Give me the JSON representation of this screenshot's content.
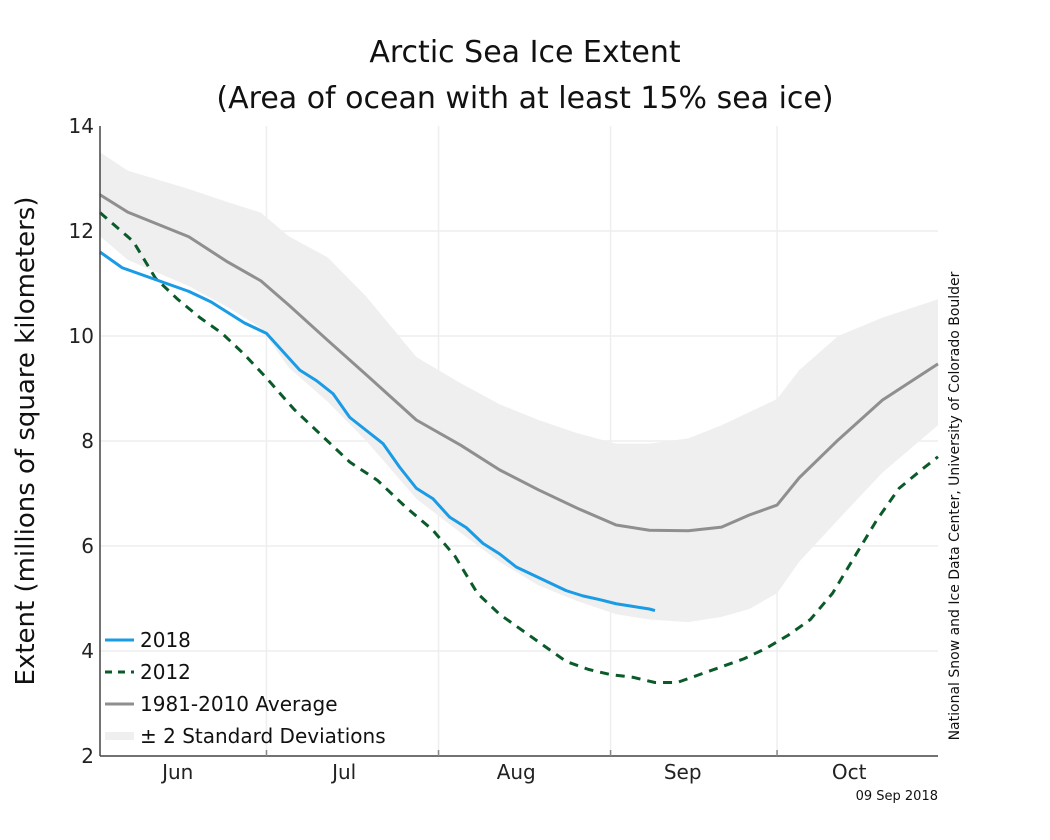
{
  "chart_data": {
    "type": "line",
    "title": "Arctic Sea Ice Extent",
    "subtitle": "(Area of ocean with at least 15% sea ice)",
    "xlabel": "",
    "ylabel": "Extent (millions of square kilometers)",
    "ylim": [
      2,
      14
    ],
    "yticks": [
      2,
      4,
      6,
      8,
      10,
      12,
      14
    ],
    "ytick_labels": [
      "2",
      "4",
      "6",
      "8",
      "10",
      "12",
      "14"
    ],
    "x_unit": "days since Jun 1",
    "xlim": [
      0,
      151
    ],
    "month_boundaries": [
      30,
      61,
      92,
      122
    ],
    "month_labels": [
      {
        "label": "Jun",
        "center": 14
      },
      {
        "label": "Jul",
        "center": 44
      },
      {
        "label": "Aug",
        "center": 75
      },
      {
        "label": "Sep",
        "center": 105
      },
      {
        "label": "Oct",
        "center": 135
      }
    ],
    "grid": true,
    "legend_position": "bottom-left",
    "colors": {
      "2018": "#1a9be6",
      "2012": "#0b5a2a",
      "average": "#8f8f8f",
      "band": "#efefef",
      "axis": "#444444",
      "grid": "#eeeeee"
    },
    "series": [
      {
        "name": "2018",
        "key": "2018",
        "style": "solid",
        "x": [
          0,
          4,
          8,
          12,
          16,
          20,
          23,
          26,
          30,
          33,
          36,
          39,
          42,
          45,
          48,
          51,
          54,
          57,
          60,
          63,
          66,
          69,
          72,
          75,
          78,
          81,
          84,
          87,
          90,
          93,
          96,
          99,
          100
        ],
        "values": [
          11.6,
          11.3,
          11.15,
          11.0,
          10.85,
          10.65,
          10.45,
          10.25,
          10.05,
          9.7,
          9.35,
          9.15,
          8.9,
          8.45,
          8.2,
          7.95,
          7.5,
          7.1,
          6.9,
          6.55,
          6.35,
          6.05,
          5.85,
          5.6,
          5.45,
          5.3,
          5.15,
          5.05,
          4.98,
          4.9,
          4.85,
          4.8,
          4.77
        ]
      },
      {
        "name": "2012",
        "key": "2012",
        "style": "dashed",
        "x": [
          0,
          6,
          10,
          14,
          18,
          22,
          26,
          30,
          35,
          40,
          45,
          50,
          55,
          60,
          64,
          68,
          72,
          76,
          80,
          84,
          88,
          92,
          96,
          100,
          104,
          108,
          112,
          116,
          120,
          124,
          128,
          132,
          136,
          140,
          144,
          148,
          151
        ],
        "values": [
          12.35,
          11.8,
          11.1,
          10.7,
          10.35,
          10.05,
          9.65,
          9.2,
          8.6,
          8.1,
          7.6,
          7.25,
          6.75,
          6.3,
          5.8,
          5.1,
          4.7,
          4.4,
          4.1,
          3.8,
          3.65,
          3.55,
          3.5,
          3.4,
          3.4,
          3.55,
          3.7,
          3.85,
          4.05,
          4.3,
          4.6,
          5.1,
          5.8,
          6.5,
          7.1,
          7.45,
          7.7
        ]
      },
      {
        "name": "1981-2010 Average",
        "key": "average",
        "style": "solid",
        "x": [
          0,
          5,
          16,
          23,
          29,
          34,
          41,
          48,
          57,
          65,
          72,
          79,
          86,
          93,
          99,
          106,
          112,
          117,
          122,
          126,
          133,
          141,
          151
        ],
        "values": [
          12.69,
          12.36,
          11.89,
          11.41,
          11.05,
          10.59,
          9.92,
          9.26,
          8.4,
          7.92,
          7.45,
          7.07,
          6.72,
          6.4,
          6.3,
          6.29,
          6.36,
          6.59,
          6.78,
          7.3,
          8.02,
          8.78,
          9.47
        ]
      }
    ],
    "band": {
      "name": "± 2 Standard Deviations",
      "key": "band",
      "x": [
        0,
        5,
        16,
        23,
        29,
        34,
        41,
        48,
        57,
        65,
        72,
        79,
        86,
        93,
        99,
        106,
        112,
        117,
        122,
        126,
        133,
        141,
        151
      ],
      "upper": [
        13.5,
        13.15,
        12.8,
        12.55,
        12.35,
        11.9,
        11.5,
        10.75,
        9.6,
        9.1,
        8.7,
        8.4,
        8.15,
        7.95,
        7.95,
        8.05,
        8.3,
        8.55,
        8.8,
        9.35,
        10.0,
        10.35,
        10.7
      ],
      "lower": [
        11.9,
        11.45,
        10.95,
        10.55,
        10.15,
        9.4,
        8.75,
        8.0,
        6.9,
        6.25,
        5.7,
        5.25,
        4.95,
        4.7,
        4.6,
        4.55,
        4.65,
        4.8,
        5.1,
        5.7,
        6.5,
        7.4,
        8.3
      ]
    },
    "legend": [
      {
        "label": "2018",
        "key": "2018",
        "style": "solid"
      },
      {
        "label": "2012",
        "key": "2012",
        "style": "dashed"
      },
      {
        "label": "1981-2010 Average",
        "key": "average",
        "style": "solid"
      },
      {
        "label": "± 2 Standard Deviations",
        "key": "band",
        "style": "band"
      }
    ],
    "annotations": {
      "credit": "National Snow and Ice Data Center, University of Colorado Boulder",
      "date": "09 Sep 2018"
    }
  }
}
